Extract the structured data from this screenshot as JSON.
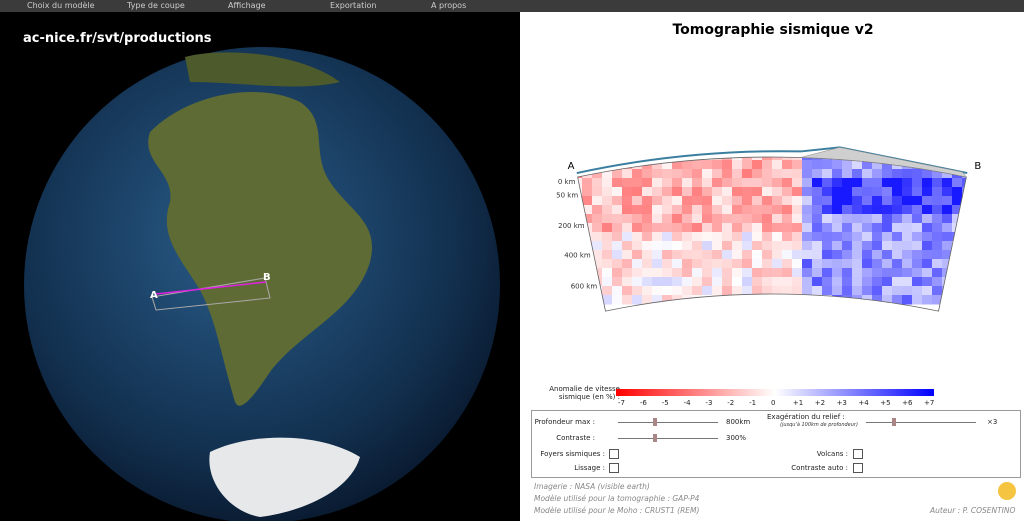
{
  "menu": [
    "Choix du modèle",
    "Type de coupe",
    "Affichage",
    "Exportation",
    "A propos"
  ],
  "globe": {
    "watermark": "ac-nice.fr/svt/productions",
    "point_a": "A",
    "point_b": "B"
  },
  "section": {
    "title": "Tomographie sismique v2",
    "point_a": "A",
    "point_b": "B",
    "depths": [
      "0 km",
      "50 km",
      "200 km",
      "400 km",
      "600 km"
    ]
  },
  "legend": {
    "label": "Anomalie de vitesse sismique (en %) :",
    "scale": [
      "-7",
      "-6",
      "-5",
      "-4",
      "-3",
      "-2",
      "-1",
      "0",
      "+1",
      "+2",
      "+3",
      "+4",
      "+5",
      "+6",
      "+7"
    ]
  },
  "controls": {
    "depth_label": "Profondeur max :",
    "depth_value": "800km",
    "contrast_label": "Contraste :",
    "contrast_value": "300%",
    "relief_label": "Exagération du relief :",
    "relief_note": "(jusqu'à 100km de profondeur)",
    "relief_value": "×3",
    "quakes": "Foyers sismiques :",
    "volcanoes": "Volcans :",
    "smoothing": "Lissage :",
    "auto_contrast": "Contraste auto :"
  },
  "footer": {
    "imagery": "Imagerie : NASA (visible earth)",
    "tomo_model": "Modèle utilisé pour la tomographie : GAP-P4",
    "moho_model": "Modèle utilisé pour le Moho : CRUST1 (REM)",
    "author": "Auteur : P. COSENTINO"
  }
}
